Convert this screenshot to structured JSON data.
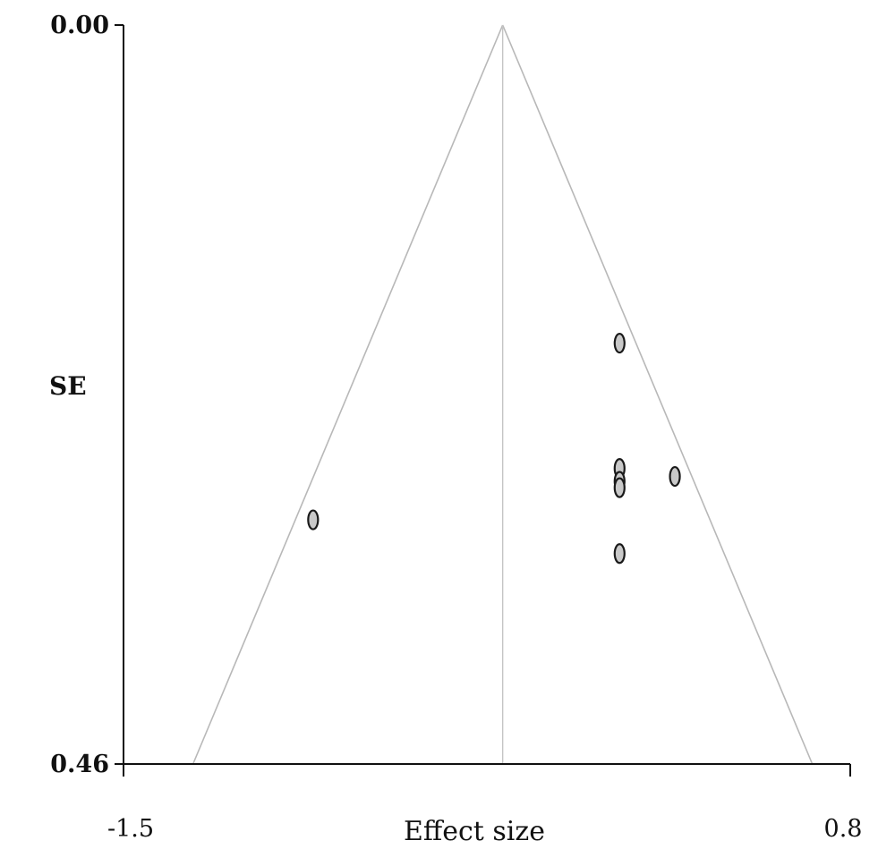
{
  "chart_data": {
    "type": "scatter",
    "title": "",
    "xlabel": "Effect size",
    "ylabel": "SE",
    "xlim": [
      -1.5,
      0.8
    ],
    "ylim": [
      0.0,
      0.46
    ],
    "y_inverted": true,
    "x_tick_labels": [
      "-1.5",
      "0.8"
    ],
    "y_tick_labels": [
      "0.00",
      "0.46"
    ],
    "pooled_effect": -0.3,
    "funnel_base": [
      -1.28,
      0.68
    ],
    "points": [
      {
        "x": 0.07,
        "y": 0.198
      },
      {
        "x": 0.07,
        "y": 0.276
      },
      {
        "x": 0.07,
        "y": 0.284
      },
      {
        "x": 0.07,
        "y": 0.288
      },
      {
        "x": 0.245,
        "y": 0.281
      },
      {
        "x": 0.07,
        "y": 0.329
      },
      {
        "x": -0.9,
        "y": 0.308
      }
    ],
    "grid": false,
    "colors": {
      "marker_fill": "#c9c9c9",
      "marker_edge": "#1a1a1a",
      "funnel": "#b8b8b8",
      "axis": "#111111"
    }
  }
}
